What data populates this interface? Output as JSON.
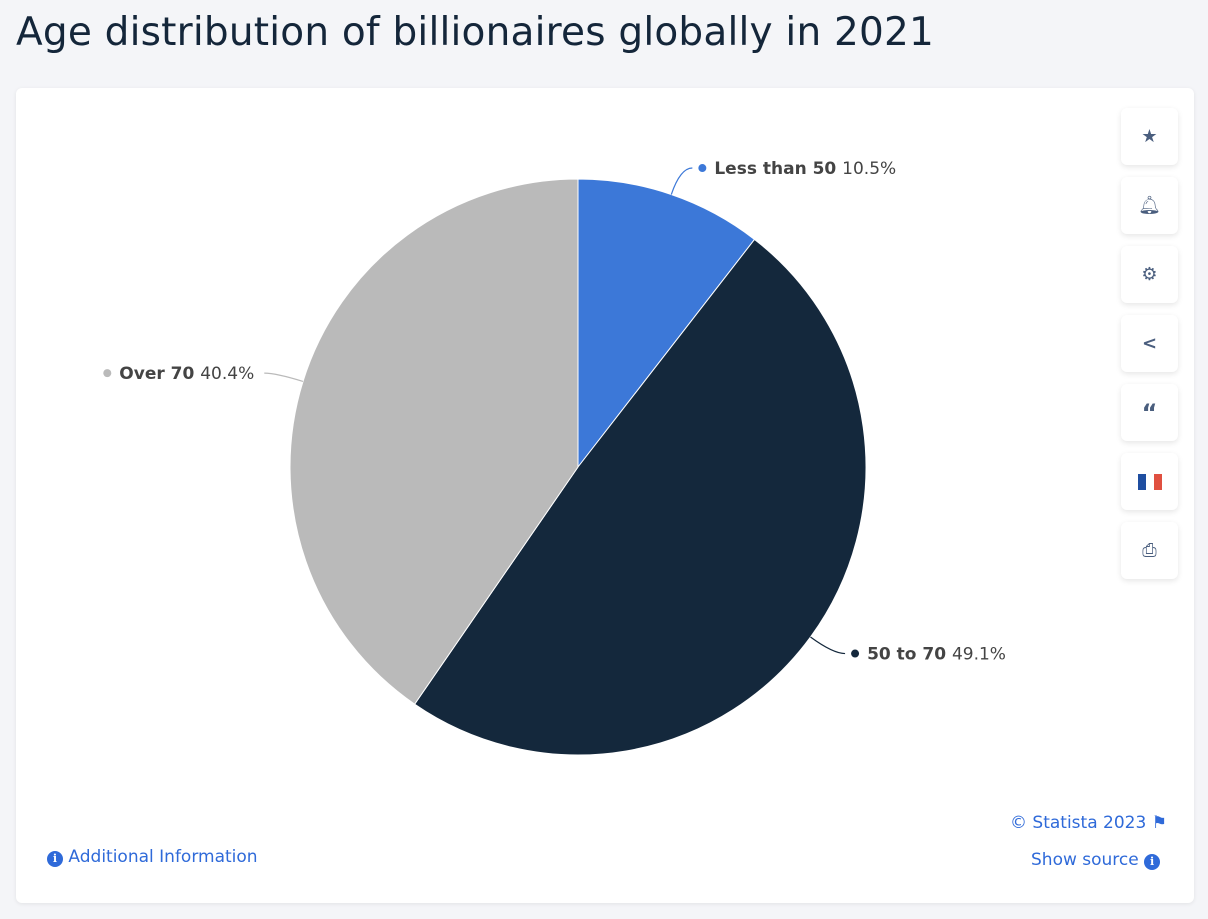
{
  "title": "Age distribution of billionaires globally in 2021",
  "chart_data": {
    "type": "pie",
    "title": "Age distribution of billionaires globally in 2021",
    "categories": [
      "Less than 50",
      "50 to 70",
      "Over 70"
    ],
    "values": [
      10.5,
      49.1,
      40.4
    ],
    "labels": [
      "10.5%",
      "49.1%",
      "40.4%"
    ],
    "colors": [
      "#3c78d8",
      "#14283c",
      "#bababa"
    ],
    "unit": "%"
  },
  "toolbar": [
    "star-icon",
    "bell-icon",
    "gear-icon",
    "share-icon",
    "quote-icon",
    "french-flag-icon",
    "print-icon"
  ],
  "footer": {
    "copyright": "© Statista 2023",
    "show_source": "Show source",
    "additional_info": "Additional Information"
  }
}
